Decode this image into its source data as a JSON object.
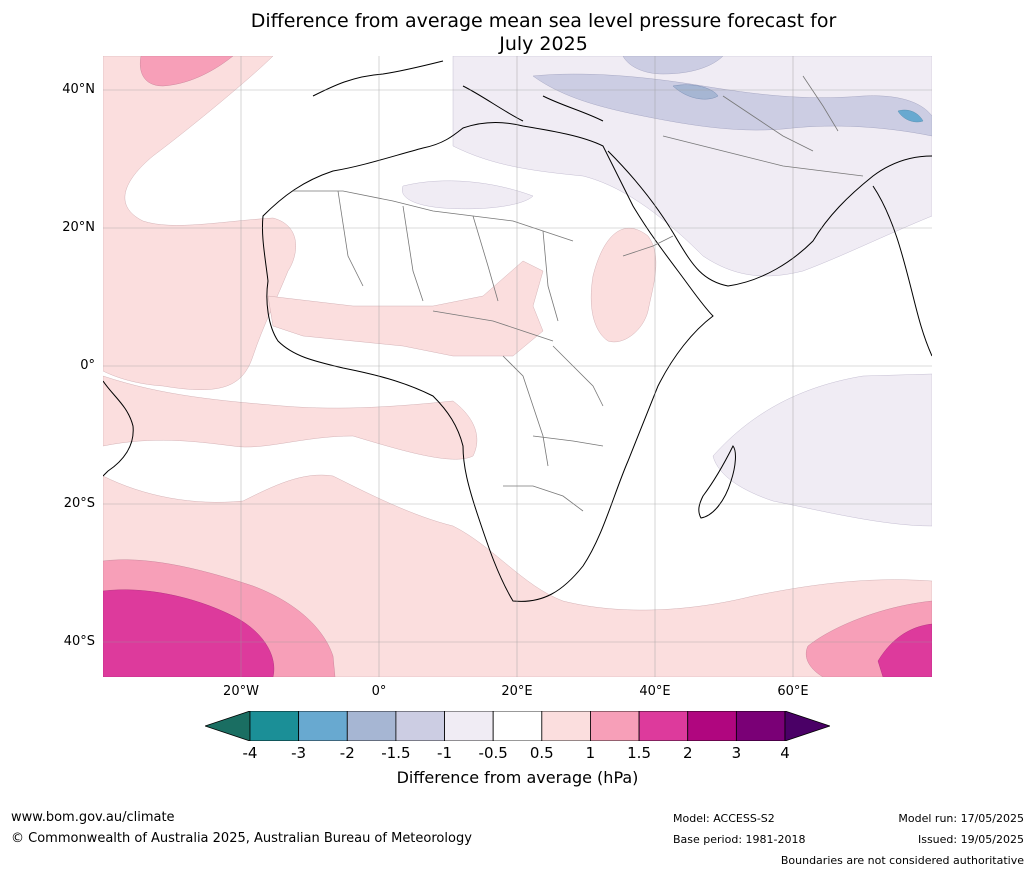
{
  "title_line1": "Difference from average mean sea level pressure forecast for",
  "title_line2": "July 2025",
  "latitude_labels": [
    "40°N",
    "20°N",
    "0°",
    "20°S",
    "40°S"
  ],
  "longitude_labels": [
    "20°W",
    "0°",
    "20°E",
    "40°E",
    "60°E"
  ],
  "colorbar": {
    "ticks": [
      "-4",
      "-3",
      "-2",
      "-1.5",
      "-1",
      "-0.5",
      "0.5",
      "1",
      "1.5",
      "2",
      "3",
      "4"
    ],
    "colors": {
      "below": "#1a6e62",
      "lt_-3": "#1b8f97",
      "lt_-2": "#68a9d0",
      "lt_-1.5": "#a6b6d3",
      "lt_-1": "#cccde3",
      "lt_-0.5": "#f0ecf4",
      "neutral": "#ffffff",
      "gt_0.5": "#fbdede",
      "gt_1": "#f79fb8",
      "gt_1.5": "#dd3a9c",
      "gt_2": "#b0067f",
      "gt_3": "#7a0076",
      "above": "#4a0066"
    },
    "label": "Difference from average (hPa)"
  },
  "map": {
    "region": "Africa, Atlantic and Indian Oceans, Middle East",
    "icons": [
      "coastline",
      "country-boundaries",
      "graticule"
    ]
  },
  "footer": {
    "website": "www.bom.gov.au/climate",
    "copyright": "© Commonwealth of Australia 2025, Australian Bureau of Meteorology",
    "model": "Model: ACCESS-S2",
    "base_period": "Base period: 1981-2018",
    "model_run": "Model run: 17/05/2025",
    "issued": "Issued: 19/05/2025",
    "disclaimer": "Boundaries are not considered authoritative"
  }
}
